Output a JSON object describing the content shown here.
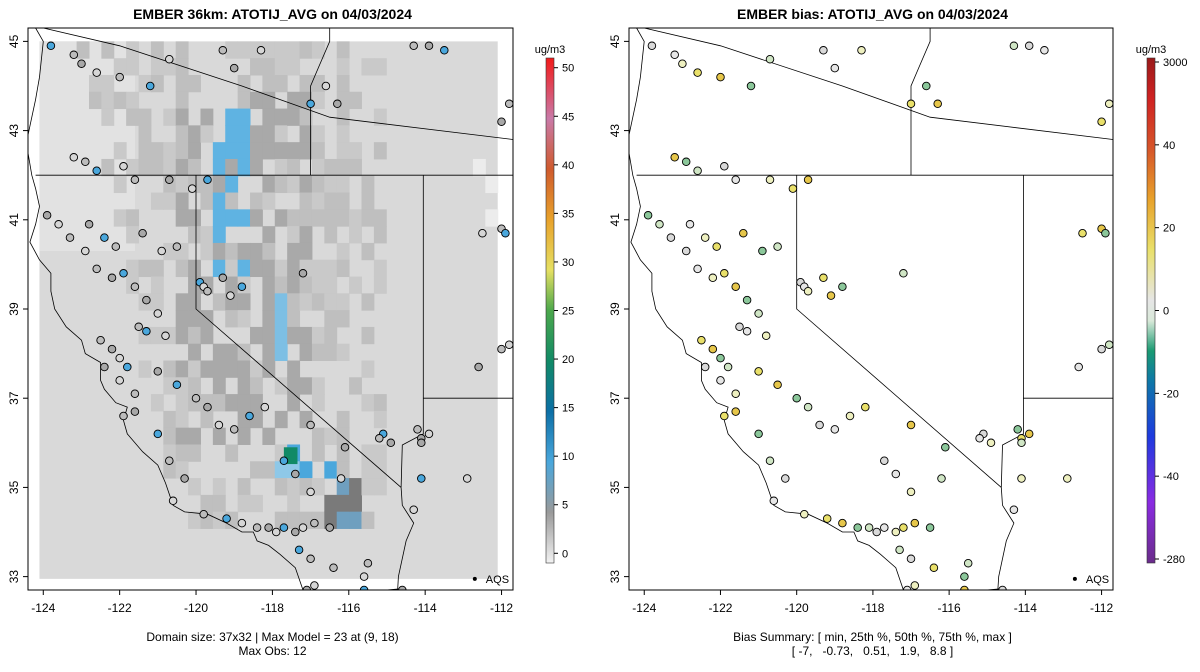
{
  "chart_data": [
    {
      "type": "heatmap",
      "title": "EMBER 36km: ATOTIJ_AVG on 04/03/2024",
      "xlabel": "",
      "ylabel": "",
      "x_ticks": [
        "-124",
        "-122",
        "-120",
        "-118",
        "-116",
        "-114",
        "-112"
      ],
      "y_ticks": [
        "33",
        "35",
        "37",
        "39",
        "41",
        "43",
        "45"
      ],
      "xlim": [
        -124.4,
        -111.7
      ],
      "ylim": [
        32.7,
        45.3
      ],
      "colorbar": {
        "unit": "ug/m3",
        "ticks": [
          "0",
          "5",
          "10",
          "15",
          "20",
          "25",
          "30",
          "35",
          "40",
          "45",
          "50"
        ],
        "range": [
          -1,
          51
        ]
      },
      "legend_label": "AQS",
      "footer": {
        "line1": "Domain size: 37x32 | Max Model = 23 at (9, 18)",
        "line2": "Max Obs: 12"
      }
    },
    {
      "type": "scatter",
      "title": "EMBER bias: ATOTIJ_AVG on 04/03/2024",
      "xlabel": "",
      "ylabel": "",
      "x_ticks": [
        "-124",
        "-122",
        "-120",
        "-118",
        "-116",
        "-114",
        "-112"
      ],
      "y_ticks": [
        "33",
        "35",
        "37",
        "39",
        "41",
        "43",
        "45"
      ],
      "xlim": [
        -124.4,
        -111.7
      ],
      "ylim": [
        32.7,
        45.3
      ],
      "colorbar": {
        "unit": "ug/m3",
        "ticks": [
          "3000",
          "40",
          "20",
          "0",
          "-20",
          "-40",
          "-280"
        ]
      },
      "legend_label": "AQS",
      "bias_summary": {
        "min": -7,
        "p25": -0.73,
        "p50": 0.51,
        "p75": 1.9,
        "max": 8.8
      },
      "footer": {
        "line1": "Bias Summary: [ min, 25th %, 50th %, 75th %, max ]",
        "line2": "[ -7,   -0.73,   0.51,   1.9,   8.8 ]"
      }
    }
  ]
}
